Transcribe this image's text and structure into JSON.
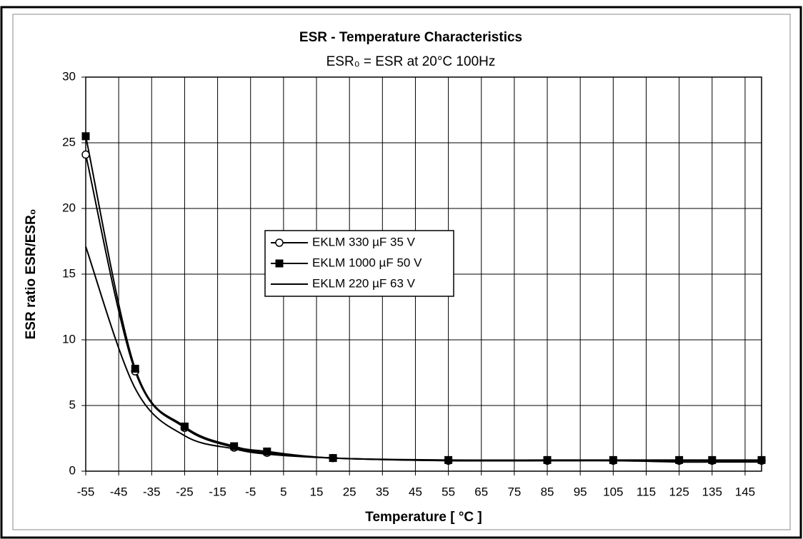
{
  "chart_data": {
    "type": "line",
    "title": "ESR - Temperature Characteristics",
    "subtitle": "ESR₀ = ESR at 20°C 100Hz",
    "x_label": "Temperature [ °C ]",
    "y_label": "ESR ratio ESR/ESR₀",
    "x": [
      -55,
      -40,
      -25,
      -10,
      0,
      20,
      55,
      85,
      105,
      125,
      135,
      150
    ],
    "series": [
      {
        "name": "EKLM 330 µF 35 V",
        "color": "#000000",
        "marker": "circle",
        "values": [
          24.1,
          7.6,
          3.3,
          1.8,
          1.4,
          1.0,
          0.8,
          0.8,
          0.8,
          0.8,
          0.8,
          0.8
        ]
      },
      {
        "name": "EKLM 1000 µF 50 V",
        "color": "#000000",
        "marker": "square",
        "values": [
          25.5,
          7.8,
          3.4,
          1.9,
          1.5,
          1.0,
          0.85,
          0.85,
          0.85,
          0.85,
          0.85,
          0.85
        ]
      },
      {
        "name": "EKLM 220 µF 63 V",
        "color": "#000000",
        "marker": "none",
        "values": [
          17.1,
          6.3,
          2.7,
          1.7,
          1.3,
          1.0,
          0.8,
          0.8,
          0.8,
          0.7,
          0.7,
          0.7
        ]
      }
    ],
    "xlim": [
      -55,
      150
    ],
    "xticks": [
      -55,
      -45,
      -35,
      -25,
      -15,
      -5,
      5,
      15,
      25,
      35,
      45,
      55,
      65,
      75,
      85,
      95,
      105,
      115,
      125,
      135,
      145
    ],
    "ylim": [
      0,
      30
    ],
    "yticks": [
      0,
      5,
      10,
      15,
      20,
      25,
      30
    ],
    "grid": true,
    "legend": "center"
  }
}
